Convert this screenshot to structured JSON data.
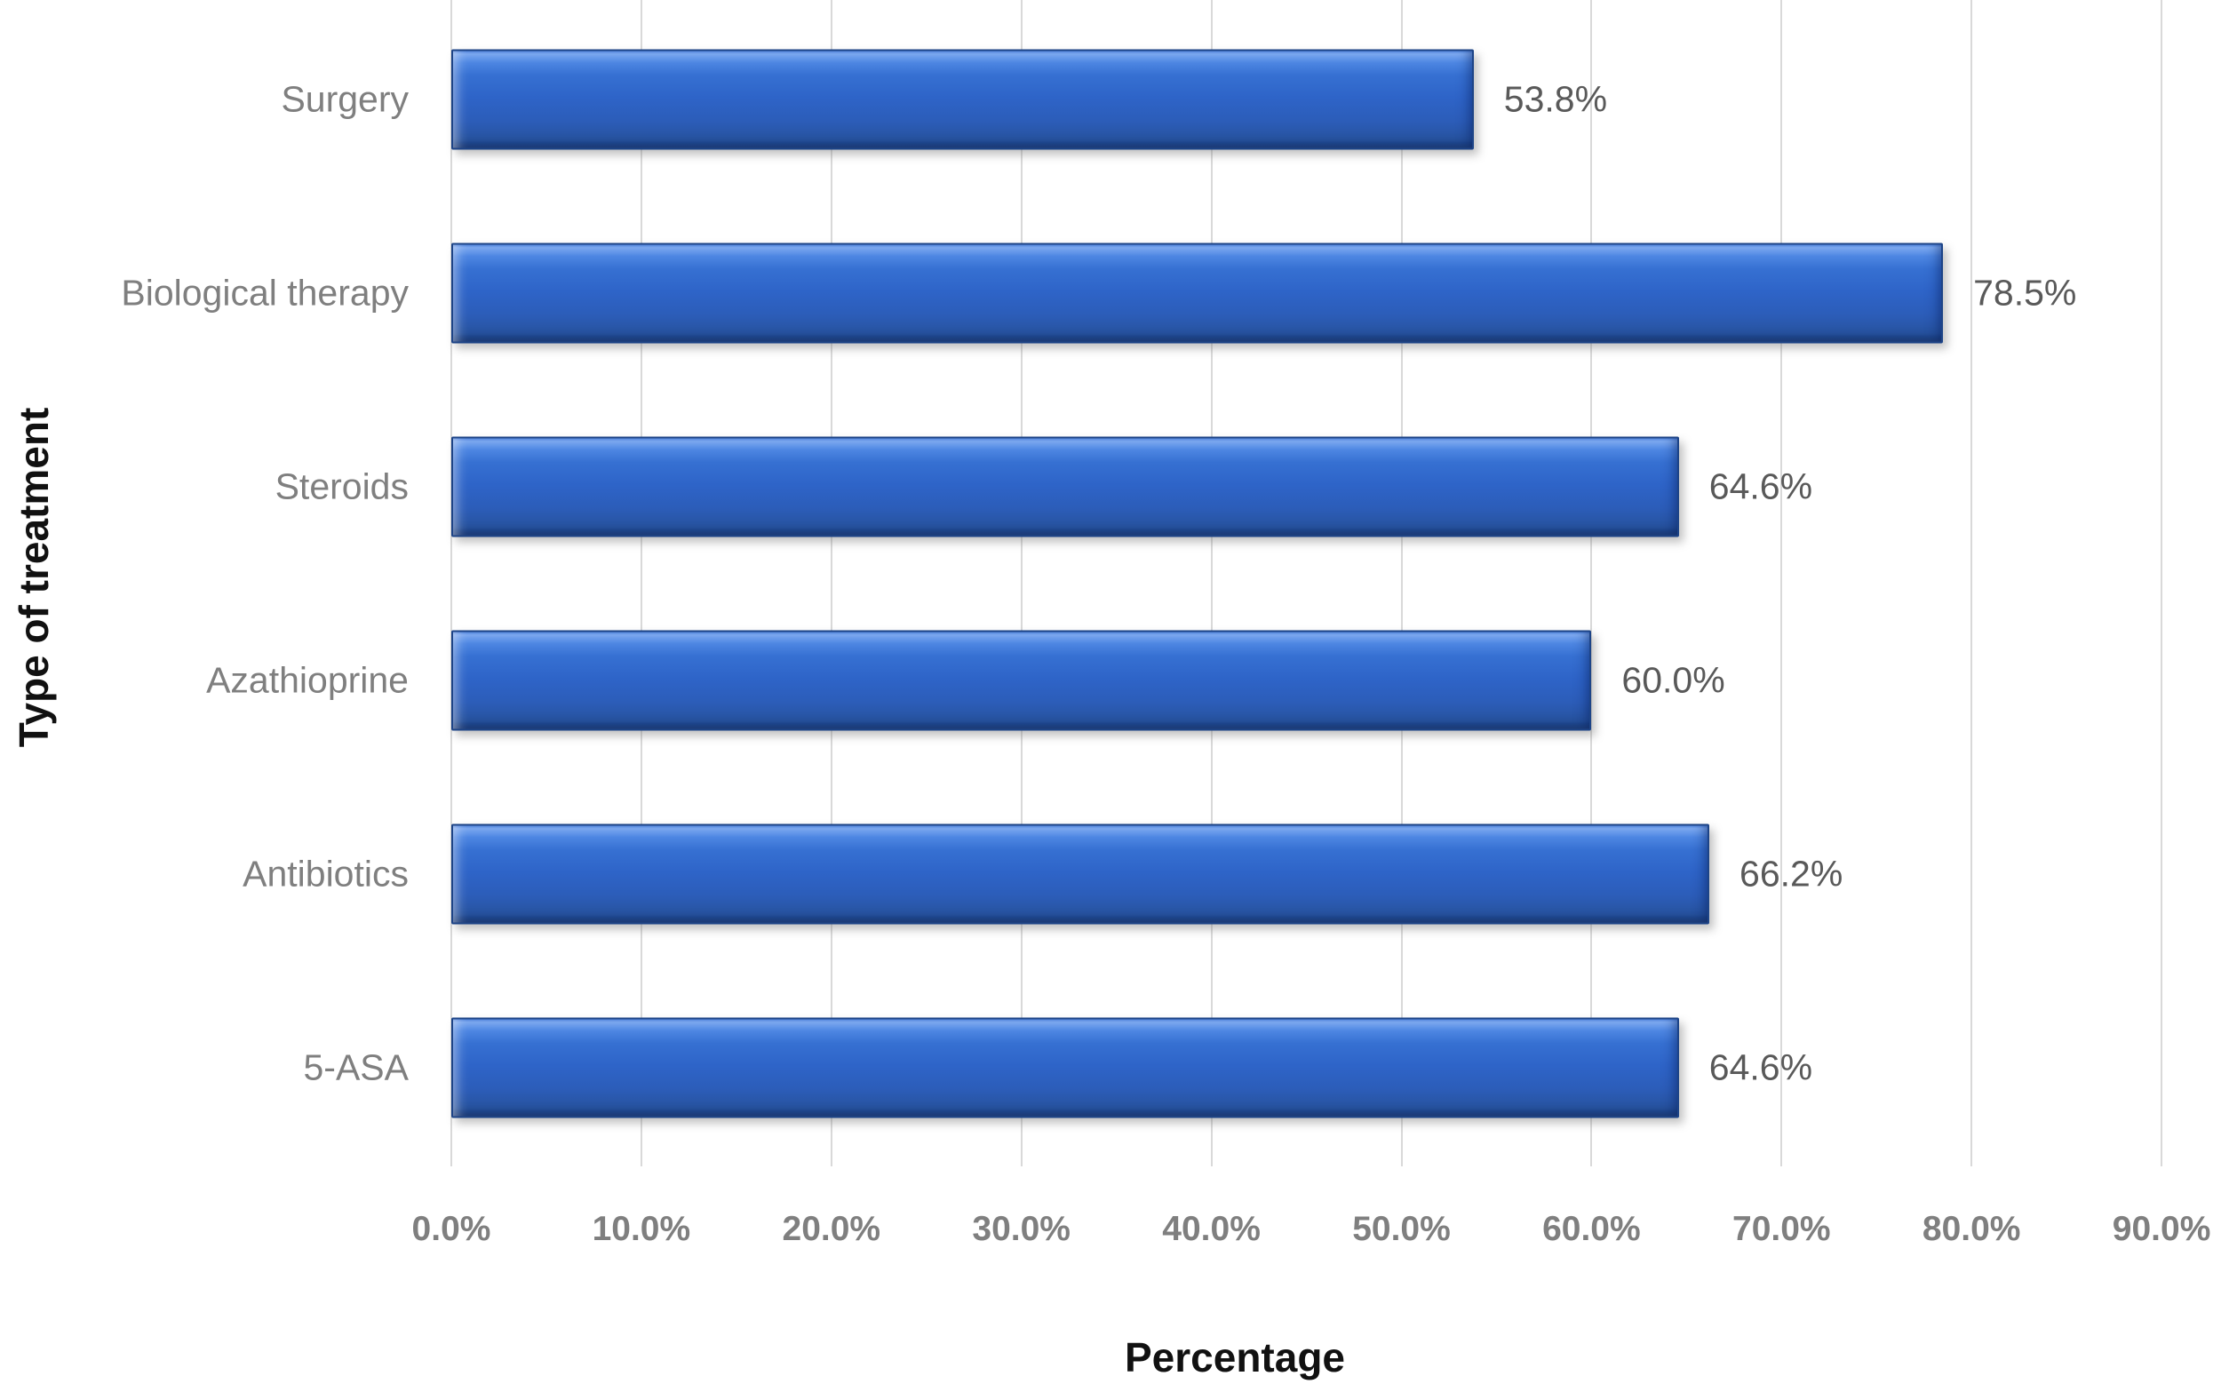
{
  "chart_data": {
    "type": "bar",
    "orientation": "horizontal",
    "title": "",
    "xlabel": "Percentage",
    "ylabel": "Type of treatment",
    "categories": [
      "Surgery",
      "Biological therapy",
      "Steroids",
      "Azathioprine",
      "Antibiotics",
      "5-ASA"
    ],
    "values": [
      53.8,
      78.5,
      64.6,
      60.0,
      66.2,
      64.6
    ],
    "value_labels": [
      "53.8%",
      "78.5%",
      "64.6%",
      "60.0%",
      "66.2%",
      "64.6%"
    ],
    "x_ticks": [
      "0.0%",
      "10.0%",
      "20.0%",
      "30.0%",
      "40.0%",
      "50.0%",
      "60.0%",
      "70.0%",
      "80.0%",
      "90.0%"
    ],
    "x_tick_values": [
      0,
      10,
      20,
      30,
      40,
      50,
      60,
      70,
      80,
      90
    ],
    "xlim": [
      0,
      90
    ],
    "grid": "vertical-only",
    "legend": "none",
    "bar_color": "#2e64c8",
    "bar_border_color": "#1d4487",
    "gridline_color": "#d9d9d9",
    "category_label_color": "#7f7f7f",
    "value_label_color": "#595959",
    "tick_label_color": "#7f7f7f",
    "axis_title_color": "#111111"
  }
}
